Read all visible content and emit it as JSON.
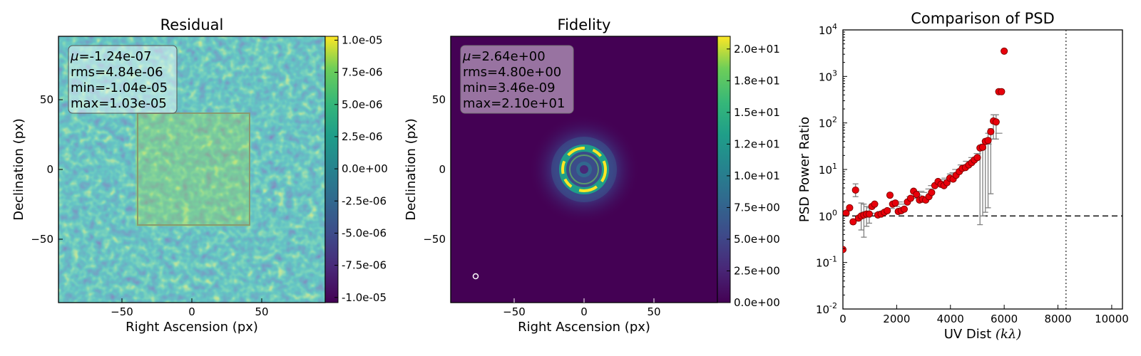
{
  "chart_data": [
    {
      "type": "heatmap",
      "title": "Residual",
      "xlabel": "Right Ascension (px)",
      "ylabel": "Declination (px)",
      "xlim": [
        -95,
        95
      ],
      "ylim": [
        -95,
        95
      ],
      "xticks": [
        -50,
        0,
        50
      ],
      "xtick_labels": [
        "−50",
        "0",
        "50"
      ],
      "yticks": [
        -50,
        0,
        50
      ],
      "ytick_labels": [
        "−50",
        "0",
        "50"
      ],
      "region_box": {
        "x": [
          -40,
          40
        ],
        "y": [
          -40,
          40
        ]
      },
      "stats": [
        {
          "key": "μ",
          "value": "=-1.24e-07"
        },
        {
          "key": "rms",
          "value": "=4.84e-06"
        },
        {
          "key": "min",
          "value": "=-1.04e-05"
        },
        {
          "key": "max",
          "value": "=1.03e-05"
        }
      ],
      "colorbar": {
        "colormap": "viridis",
        "range": [
          -1.04e-05,
          1.03e-05
        ],
        "ticks": [
          1e-05,
          7.5e-06,
          5e-06,
          2.5e-06,
          0.0,
          -2.5e-06,
          -5e-06,
          -7.5e-06,
          -1e-05
        ],
        "tick_labels": [
          "1.0e-05",
          "7.5e-06",
          "5.0e-06",
          "2.5e-06",
          "0.0e+00",
          "-2.5e-06",
          "-5.0e-06",
          "-7.5e-06",
          "-1.0e-05"
        ]
      }
    },
    {
      "type": "heatmap",
      "title": "Fidelity",
      "xlabel": "Right Ascension (px)",
      "ylabel": "Declination (px)",
      "xlim": [
        -95,
        95
      ],
      "ylim": [
        -95,
        95
      ],
      "xticks": [
        -50,
        0,
        50
      ],
      "xtick_labels": [
        "−50",
        "0",
        "50"
      ],
      "yticks": [
        -50,
        0,
        50
      ],
      "ytick_labels": [
        "−50",
        "0",
        "50"
      ],
      "beam_marker": {
        "x": -77,
        "y": -77
      },
      "stats": [
        {
          "key": "μ",
          "value": "=2.64e+00"
        },
        {
          "key": "rms",
          "value": "=4.80e+00"
        },
        {
          "key": "min",
          "value": "=3.46e-09"
        },
        {
          "key": "max",
          "value": "=2.10e+01"
        }
      ],
      "colorbar": {
        "colormap": "viridis",
        "range": [
          0,
          21.0
        ],
        "ticks": [
          20.0,
          17.5,
          15.0,
          12.5,
          10.0,
          7.5,
          5.0,
          2.5,
          0.0
        ],
        "tick_labels": [
          "2.0e+01",
          "1.8e+01",
          "1.5e+01",
          "1.2e+01",
          "1.0e+01",
          "7.5e+00",
          "5.0e+00",
          "2.5e+00",
          "0.0e+00"
        ]
      }
    },
    {
      "type": "scatter",
      "title": "Comparison of PSD",
      "xlabel": "UV Dist ",
      "xlabel_math": "(kλ)",
      "ylabel": "PSD Power Ratio",
      "xlim": [
        0,
        10400
      ],
      "ylim_log10": [
        -2,
        4
      ],
      "xticks": [
        0,
        2000,
        4000,
        6000,
        8000,
        10000
      ],
      "xtick_labels": [
        "0",
        "2000",
        "4000",
        "6000",
        "8000",
        "10000"
      ],
      "ytick_exponents": [
        -2,
        -1,
        0,
        1,
        2,
        3,
        4
      ],
      "ytick_base": "10",
      "hline_y": 1,
      "vline_x": 8300,
      "points": [
        {
          "x": 0,
          "y": 0.19
        },
        {
          "x": 120,
          "y": 1.15
        },
        {
          "x": 250,
          "y": 1.5
        },
        {
          "x": 380,
          "y": 0.75
        },
        {
          "x": 470,
          "y": 3.6,
          "err": [
            2.6,
            4.9
          ]
        },
        {
          "x": 580,
          "y": 0.9
        },
        {
          "x": 680,
          "y": 1.0,
          "err": [
            0.5,
            1.9
          ]
        },
        {
          "x": 780,
          "y": 1.05,
          "err": [
            0.35,
            1.8
          ]
        },
        {
          "x": 880,
          "y": 1.1,
          "err": [
            0.6,
            1.6
          ]
        },
        {
          "x": 980,
          "y": 1.1,
          "err": [
            0.7,
            1.5
          ]
        },
        {
          "x": 1080,
          "y": 1.6
        },
        {
          "x": 1180,
          "y": 1.8
        },
        {
          "x": 1300,
          "y": 1.05
        },
        {
          "x": 1420,
          "y": 1.1
        },
        {
          "x": 1540,
          "y": 1.2
        },
        {
          "x": 1650,
          "y": 1.3
        },
        {
          "x": 1750,
          "y": 2.8
        },
        {
          "x": 1850,
          "y": 1.8
        },
        {
          "x": 1950,
          "y": 1.9
        },
        {
          "x": 2060,
          "y": 1.25
        },
        {
          "x": 2170,
          "y": 1.3
        },
        {
          "x": 2280,
          "y": 1.4
        },
        {
          "x": 2400,
          "y": 2.0
        },
        {
          "x": 2520,
          "y": 2.4
        },
        {
          "x": 2630,
          "y": 3.4
        },
        {
          "x": 2740,
          "y": 2.9
        },
        {
          "x": 2850,
          "y": 2.2
        },
        {
          "x": 2960,
          "y": 2.3
        },
        {
          "x": 3080,
          "y": 2.2
        },
        {
          "x": 3200,
          "y": 2.6
        },
        {
          "x": 3300,
          "y": 3.2
        },
        {
          "x": 3420,
          "y": 4.5
        },
        {
          "x": 3540,
          "y": 5.5
        },
        {
          "x": 3650,
          "y": 4.8
        },
        {
          "x": 3760,
          "y": 4.5
        },
        {
          "x": 3870,
          "y": 5.2
        },
        {
          "x": 3980,
          "y": 6.5
        },
        {
          "x": 4100,
          "y": 6.2
        },
        {
          "x": 4210,
          "y": 7.5
        },
        {
          "x": 4330,
          "y": 9.0
        },
        {
          "x": 4440,
          "y": 10.5
        },
        {
          "x": 4560,
          "y": 11.0
        },
        {
          "x": 4680,
          "y": 12.5
        },
        {
          "x": 4790,
          "y": 14.0
        },
        {
          "x": 4890,
          "y": 16.0
        },
        {
          "x": 5000,
          "y": 18.0
        },
        {
          "x": 5100,
          "y": 29.0,
          "err": [
            0.65,
            30
          ]
        },
        {
          "x": 5200,
          "y": 30.0,
          "err": [
            1.0,
            35
          ]
        },
        {
          "x": 5300,
          "y": 40.0,
          "err": [
            1.2,
            45
          ]
        },
        {
          "x": 5400,
          "y": 42.0,
          "err": [
            1.5,
            60
          ]
        },
        {
          "x": 5500,
          "y": 65.0,
          "err": [
            3.0,
            75
          ]
        },
        {
          "x": 5600,
          "y": 110.0,
          "err": [
            45,
            150
          ]
        },
        {
          "x": 5700,
          "y": 105.0,
          "err": [
            45,
            150
          ]
        },
        {
          "x": 5800,
          "y": 470.0
        },
        {
          "x": 5900,
          "y": 470.0
        },
        {
          "x": 6000,
          "y": 3500.0
        }
      ],
      "dashes": [
        {
          "x": 1000,
          "y": 1.1
        },
        {
          "x": 1200,
          "y": 1.15
        },
        {
          "x": 1400,
          "y": 1.25
        },
        {
          "x": 1600,
          "y": 1.35
        },
        {
          "x": 1800,
          "y": 1.45
        },
        {
          "x": 2000,
          "y": 1.6
        },
        {
          "x": 2200,
          "y": 1.8
        },
        {
          "x": 2400,
          "y": 2.1
        },
        {
          "x": 2600,
          "y": 2.4
        },
        {
          "x": 2800,
          "y": 2.8
        },
        {
          "x": 3000,
          "y": 3.2
        },
        {
          "x": 3200,
          "y": 3.8
        },
        {
          "x": 3400,
          "y": 4.5
        },
        {
          "x": 3600,
          "y": 5.5
        },
        {
          "x": 3800,
          "y": 6.5
        },
        {
          "x": 4000,
          "y": 8.0
        },
        {
          "x": 4200,
          "y": 10.0
        },
        {
          "x": 4400,
          "y": 12.5
        },
        {
          "x": 4600,
          "y": 15.0
        },
        {
          "x": 4800,
          "y": 18.0
        },
        {
          "x": 5000,
          "y": 22.0
        },
        {
          "x": 5200,
          "y": 28.0
        },
        {
          "x": 5400,
          "y": 35.0
        },
        {
          "x": 5600,
          "y": 45.0
        },
        {
          "x": 5800,
          "y": 60.0
        },
        {
          "x": 2100,
          "y": 2.0
        },
        {
          "x": 2500,
          "y": 2.6
        },
        {
          "x": 2900,
          "y": 3.4
        },
        {
          "x": 3300,
          "y": 4.5
        },
        {
          "x": 3700,
          "y": 6.0
        },
        {
          "x": 4100,
          "y": 8.5
        },
        {
          "x": 4500,
          "y": 12.0
        },
        {
          "x": 4900,
          "y": 17.0
        }
      ]
    }
  ],
  "colors": {
    "marker_fill": "#e8000b",
    "marker_edge": "#7a0000",
    "errorbar": "#808080",
    "stats_box": "#ffffff"
  }
}
